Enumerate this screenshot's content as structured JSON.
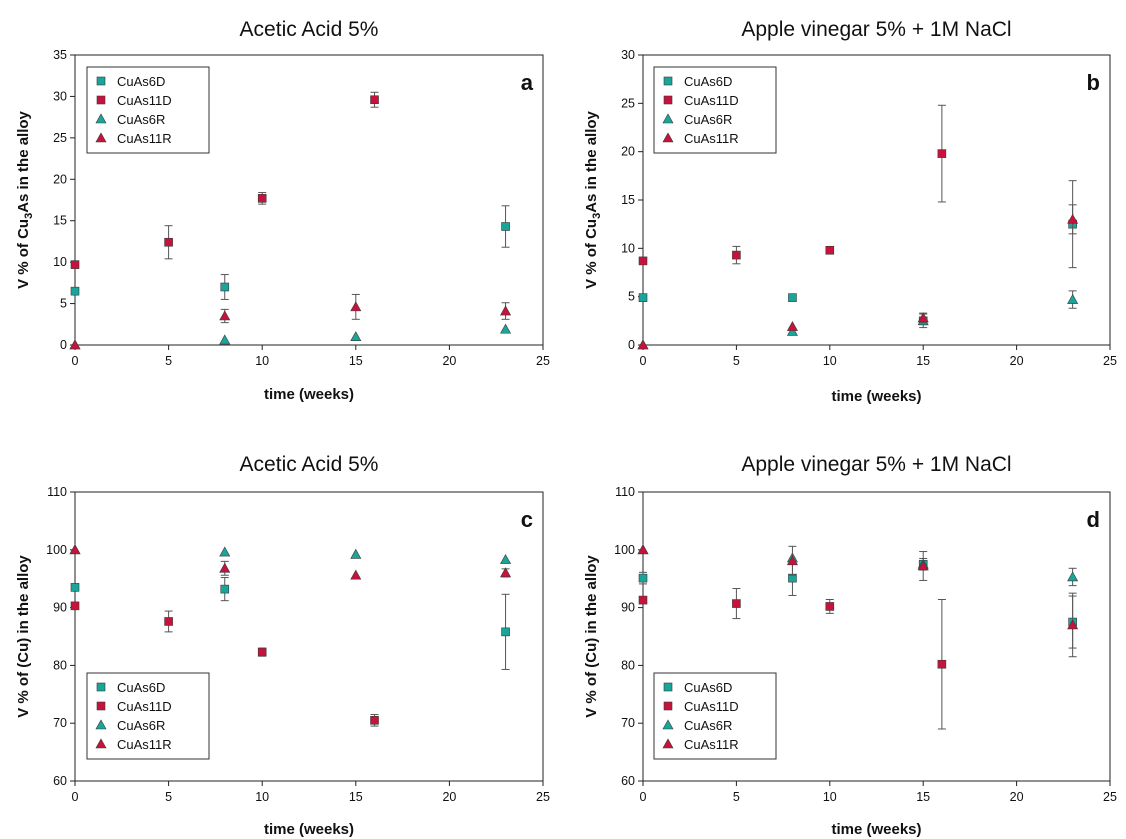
{
  "chart_data": [
    {
      "type": "scatter",
      "panel": "a",
      "title": "Acetic Acid 5%",
      "xlabel": "time (weeks)",
      "ylabel": "V % of Cu3As in the alloy",
      "xlim": [
        0,
        25
      ],
      "ylim": [
        0,
        35
      ],
      "xticks": [
        0,
        5,
        10,
        15,
        20,
        25
      ],
      "yticks": [
        0,
        5,
        10,
        15,
        20,
        25,
        30,
        35
      ],
      "legend_position": "top-left",
      "series": [
        {
          "name": "CuAs6D",
          "marker": "square",
          "color": "#1aa59a",
          "points": [
            {
              "x": 0,
              "y": 6.5,
              "err": 0
            },
            {
              "x": 8,
              "y": 7.0,
              "err": 1.5
            },
            {
              "x": 23,
              "y": 14.3,
              "err": 2.5
            }
          ]
        },
        {
          "name": "CuAs11D",
          "marker": "square",
          "color": "#c8123c",
          "points": [
            {
              "x": 0,
              "y": 9.7,
              "err": 0
            },
            {
              "x": 5,
              "y": 12.4,
              "err": 2.0
            },
            {
              "x": 10,
              "y": 17.7,
              "err": 0.7
            },
            {
              "x": 16,
              "y": 29.6,
              "err": 0.9
            }
          ]
        },
        {
          "name": "CuAs6R",
          "marker": "triangle",
          "color": "#1aa59a",
          "points": [
            {
              "x": 0,
              "y": 0,
              "err": 0
            },
            {
              "x": 8,
              "y": 0.6,
              "err": 0
            },
            {
              "x": 15,
              "y": 1.0,
              "err": 0
            },
            {
              "x": 23,
              "y": 1.9,
              "err": 0
            }
          ]
        },
        {
          "name": "CuAs11R",
          "marker": "triangle",
          "color": "#c8123c",
          "points": [
            {
              "x": 0,
              "y": 0,
              "err": 0
            },
            {
              "x": 8,
              "y": 3.5,
              "err": 0.8
            },
            {
              "x": 15,
              "y": 4.6,
              "err": 1.5
            },
            {
              "x": 23,
              "y": 4.1,
              "err": 1.0
            }
          ]
        }
      ]
    },
    {
      "type": "scatter",
      "panel": "b",
      "title": "Apple vinegar 5% + 1M NaCl",
      "xlabel": "time (weeks)",
      "ylabel": "V % of Cu3As in the alloy",
      "xlim": [
        0,
        25
      ],
      "ylim": [
        0,
        30
      ],
      "xticks": [
        0,
        5,
        10,
        15,
        20,
        25
      ],
      "yticks": [
        0,
        5,
        10,
        15,
        20,
        25,
        30
      ],
      "legend_position": "top-left",
      "series": [
        {
          "name": "CuAs6D",
          "marker": "square",
          "color": "#1aa59a",
          "points": [
            {
              "x": 0,
              "y": 4.9,
              "err": 0
            },
            {
              "x": 8,
              "y": 4.9,
              "err": 0
            },
            {
              "x": 15,
              "y": 2.5,
              "err": 0.7
            },
            {
              "x": 23,
              "y": 12.5,
              "err": 4.5
            }
          ]
        },
        {
          "name": "CuAs11D",
          "marker": "square",
          "color": "#c8123c",
          "points": [
            {
              "x": 0,
              "y": 8.7,
              "err": 0
            },
            {
              "x": 5,
              "y": 9.3,
              "err": 0.9
            },
            {
              "x": 10,
              "y": 9.8,
              "err": 0
            },
            {
              "x": 16,
              "y": 19.8,
              "err": 5.0
            }
          ]
        },
        {
          "name": "CuAs6R",
          "marker": "triangle",
          "color": "#1aa59a",
          "points": [
            {
              "x": 0,
              "y": 0,
              "err": 0
            },
            {
              "x": 8,
              "y": 1.4,
              "err": 0
            },
            {
              "x": 15,
              "y": 2.5,
              "err": 0
            },
            {
              "x": 23,
              "y": 4.7,
              "err": 0.9
            }
          ]
        },
        {
          "name": "CuAs11R",
          "marker": "triangle",
          "color": "#c8123c",
          "points": [
            {
              "x": 0,
              "y": 0,
              "err": 0
            },
            {
              "x": 8,
              "y": 1.9,
              "err": 0
            },
            {
              "x": 15,
              "y": 2.8,
              "err": 0.5
            },
            {
              "x": 23,
              "y": 13.0,
              "err": 1.5
            }
          ]
        }
      ]
    },
    {
      "type": "scatter",
      "panel": "c",
      "title": "Acetic Acid 5%",
      "xlabel": "time (weeks)",
      "ylabel": "V % of (Cu) in the alloy",
      "xlim": [
        0,
        25
      ],
      "ylim": [
        60,
        110
      ],
      "xticks": [
        0,
        5,
        10,
        15,
        20,
        25
      ],
      "yticks": [
        60,
        70,
        80,
        90,
        100,
        110
      ],
      "legend_position": "bottom-left",
      "series": [
        {
          "name": "CuAs6D",
          "marker": "square",
          "color": "#1aa59a",
          "points": [
            {
              "x": 0,
              "y": 93.5,
              "err": 0
            },
            {
              "x": 8,
              "y": 93.2,
              "err": 2.0
            },
            {
              "x": 23,
              "y": 85.8,
              "err": 6.5
            }
          ]
        },
        {
          "name": "CuAs11D",
          "marker": "square",
          "color": "#c8123c",
          "points": [
            {
              "x": 0,
              "y": 90.3,
              "err": 0
            },
            {
              "x": 5,
              "y": 87.6,
              "err": 1.8
            },
            {
              "x": 10,
              "y": 82.3,
              "err": 0.7
            },
            {
              "x": 16,
              "y": 70.5,
              "err": 1.0
            }
          ]
        },
        {
          "name": "CuAs6R",
          "marker": "triangle",
          "color": "#1aa59a",
          "points": [
            {
              "x": 0,
              "y": 100,
              "err": 0
            },
            {
              "x": 8,
              "y": 99.6,
              "err": 0
            },
            {
              "x": 15,
              "y": 99.2,
              "err": 0
            },
            {
              "x": 23,
              "y": 98.3,
              "err": 0
            }
          ]
        },
        {
          "name": "CuAs11R",
          "marker": "triangle",
          "color": "#c8123c",
          "points": [
            {
              "x": 0,
              "y": 100,
              "err": 0
            },
            {
              "x": 8,
              "y": 96.8,
              "err": 1.2
            },
            {
              "x": 15,
              "y": 95.6,
              "err": 0
            },
            {
              "x": 23,
              "y": 96.0,
              "err": 0.7
            }
          ]
        }
      ]
    },
    {
      "type": "scatter",
      "panel": "d",
      "title": "Apple vinegar 5% + 1M NaCl",
      "xlabel": "time (weeks)",
      "ylabel": "V % of (Cu) in the alloy",
      "xlim": [
        0,
        25
      ],
      "ylim": [
        60,
        110
      ],
      "xticks": [
        0,
        5,
        10,
        15,
        20,
        25
      ],
      "yticks": [
        60,
        70,
        80,
        90,
        100,
        110
      ],
      "legend_position": "bottom-left",
      "series": [
        {
          "name": "CuAs6D",
          "marker": "square",
          "color": "#1aa59a",
          "points": [
            {
              "x": 0,
              "y": 95.1,
              "err": 1.0
            },
            {
              "x": 8,
              "y": 95.1,
              "err": 3.0
            },
            {
              "x": 15,
              "y": 97.5,
              "err": 1.0
            },
            {
              "x": 23,
              "y": 87.5,
              "err": 4.5
            }
          ]
        },
        {
          "name": "CuAs11D",
          "marker": "square",
          "color": "#c8123c",
          "points": [
            {
              "x": 0,
              "y": 91.3,
              "err": 0
            },
            {
              "x": 5,
              "y": 90.7,
              "err": 2.6
            },
            {
              "x": 10,
              "y": 90.2,
              "err": 1.2
            },
            {
              "x": 16,
              "y": 80.2,
              "err": 11.2
            }
          ]
        },
        {
          "name": "CuAs6R",
          "marker": "triangle",
          "color": "#1aa59a",
          "points": [
            {
              "x": 0,
              "y": 100,
              "err": 0
            },
            {
              "x": 8,
              "y": 98.6,
              "err": 0
            },
            {
              "x": 15,
              "y": 97.5,
              "err": 0
            },
            {
              "x": 23,
              "y": 95.3,
              "err": 1.5
            }
          ]
        },
        {
          "name": "CuAs11R",
          "marker": "triangle",
          "color": "#c8123c",
          "points": [
            {
              "x": 0,
              "y": 100,
              "err": 0
            },
            {
              "x": 8,
              "y": 98.1,
              "err": 2.5
            },
            {
              "x": 15,
              "y": 97.2,
              "err": 2.5
            },
            {
              "x": 23,
              "y": 87.0,
              "err": 5.5
            }
          ]
        }
      ]
    }
  ]
}
